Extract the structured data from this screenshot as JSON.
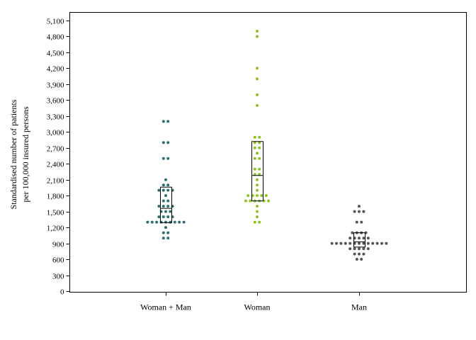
{
  "chart_data": {
    "type": "scatter",
    "subtype": "dot-strip-with-box",
    "title": "",
    "ylabel": [
      "Standardised number of patients",
      "per 100,000 insured persons"
    ],
    "xlabel": "",
    "ylim": [
      0,
      5100
    ],
    "yticks": [
      0,
      300,
      600,
      900,
      1200,
      1500,
      1800,
      2100,
      2400,
      2700,
      3000,
      3300,
      3600,
      3900,
      4200,
      4500,
      4800,
      5100
    ],
    "ytick_labels": [
      "0",
      "300",
      "600",
      "900",
      "1,200",
      "1,500",
      "1,800",
      "2,100",
      "2,400",
      "2,700",
      "3,000",
      "3,300",
      "3,600",
      "3,900",
      "4,200",
      "4,500",
      "4,800",
      "5,100"
    ],
    "grid": false,
    "legend": "none",
    "categories": [
      "Woman + Man",
      "Woman",
      "Man"
    ],
    "series": [
      {
        "color": "#2a6f73",
        "box": {
          "q1": 1290,
          "median": 1560,
          "q3": 1960
        },
        "points": [
          [
            1000,
            2
          ],
          [
            1100,
            2
          ],
          [
            1200,
            1
          ],
          [
            1300,
            9
          ],
          [
            1400,
            4
          ],
          [
            1500,
            3
          ],
          [
            1600,
            4
          ],
          [
            1700,
            2
          ],
          [
            1800,
            1
          ],
          [
            1900,
            4
          ],
          [
            2000,
            2
          ],
          [
            2100,
            1
          ],
          [
            2500,
            2
          ],
          [
            2800,
            2
          ],
          [
            3200,
            2
          ]
        ]
      },
      {
        "color": "#8dc21f",
        "box": {
          "q1": 1700,
          "median": 2180,
          "q3": 2820
        },
        "points": [
          [
            1300,
            2
          ],
          [
            1400,
            1
          ],
          [
            1500,
            1
          ],
          [
            1600,
            1
          ],
          [
            1700,
            6
          ],
          [
            1800,
            5
          ],
          [
            1900,
            1
          ],
          [
            2000,
            1
          ],
          [
            2100,
            1
          ],
          [
            2200,
            2
          ],
          [
            2300,
            2
          ],
          [
            2500,
            2
          ],
          [
            2600,
            1
          ],
          [
            2700,
            2
          ],
          [
            2800,
            2
          ],
          [
            2900,
            2
          ],
          [
            3500,
            1
          ],
          [
            3700,
            1
          ],
          [
            4000,
            1
          ],
          [
            4200,
            1
          ],
          [
            4800,
            1
          ],
          [
            4900,
            1
          ]
        ]
      },
      {
        "color": "#555555",
        "box": {
          "q1": 830,
          "median": 930,
          "q3": 1100
        },
        "points": [
          [
            600,
            2
          ],
          [
            700,
            3
          ],
          [
            800,
            5
          ],
          [
            900,
            13
          ],
          [
            1000,
            5
          ],
          [
            1100,
            4
          ],
          [
            1300,
            2
          ],
          [
            1500,
            3
          ],
          [
            1600,
            1
          ]
        ]
      }
    ]
  }
}
